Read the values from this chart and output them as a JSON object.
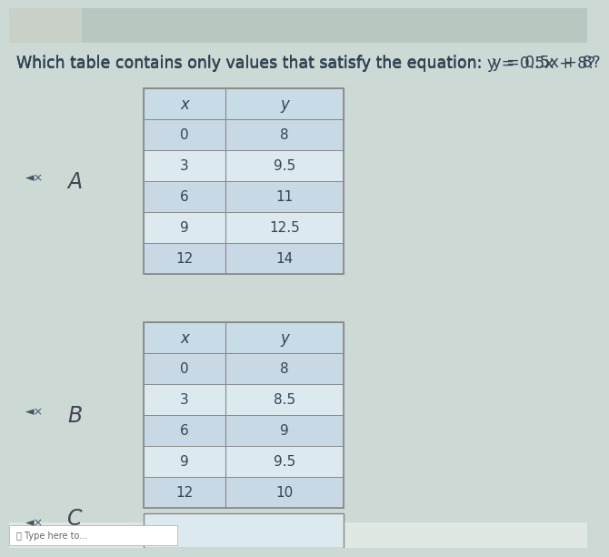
{
  "question_part1": "Which table contains only values that satisfy the equation: ",
  "question_part2": "y",
  "question_part3": " = 0.5",
  "question_part4": "x",
  "question_part5": " + 8?",
  "bg_color": "#cdd9d4",
  "photo_bg": "#b8c8c0",
  "table_header_color": "#c8dce8",
  "table_row_light": "#dceaf0",
  "table_row_dark": "#c8d8e4",
  "table_border_color": "#888888",
  "label_color": "#444455",
  "text_color": "#334455",
  "speaker_color": "#445566",
  "table_a": {
    "headers": [
      "x",
      "y"
    ],
    "rows": [
      [
        "0",
        "8"
      ],
      [
        "3",
        "9.5"
      ],
      [
        "6",
        "11"
      ],
      [
        "9",
        "12.5"
      ],
      [
        "12",
        "14"
      ]
    ]
  },
  "table_b": {
    "headers": [
      "x",
      "y"
    ],
    "rows": [
      [
        "0",
        "8"
      ],
      [
        "3",
        "8.5"
      ],
      [
        "6",
        "9"
      ],
      [
        "9",
        "9.5"
      ],
      [
        "12",
        "10"
      ]
    ]
  },
  "font_size_q": 12.5,
  "font_size_label": 17,
  "font_size_table_header": 12,
  "font_size_table_data": 11,
  "font_size_speaker": 9
}
